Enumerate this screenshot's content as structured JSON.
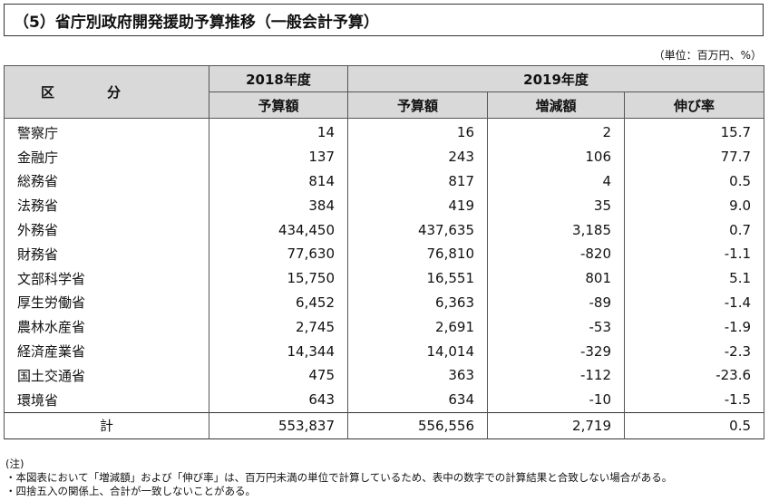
{
  "title": "（5）省庁別政府開発援助予算推移（一般会計予算）",
  "unit": "（単位：百万円、%）",
  "header": {
    "category_a": "区",
    "category_b": "分",
    "year_2018": "2018年度",
    "year_2019": "2019年度",
    "col_budget_2018": "予算額",
    "col_budget_2019": "予算額",
    "col_change": "増減額",
    "col_growth": "伸び率"
  },
  "rows": [
    {
      "name": "警察庁",
      "b2018": "14",
      "b2019": "16",
      "change": "2",
      "growth": "15.7"
    },
    {
      "name": "金融庁",
      "b2018": "137",
      "b2019": "243",
      "change": "106",
      "growth": "77.7"
    },
    {
      "name": "総務省",
      "b2018": "814",
      "b2019": "817",
      "change": "4",
      "growth": "0.5"
    },
    {
      "name": "法務省",
      "b2018": "384",
      "b2019": "419",
      "change": "35",
      "growth": "9.0"
    },
    {
      "name": "外務省",
      "b2018": "434,450",
      "b2019": "437,635",
      "change": "3,185",
      "growth": "0.7"
    },
    {
      "name": "財務省",
      "b2018": "77,630",
      "b2019": "76,810",
      "change": "-820",
      "growth": "-1.1"
    },
    {
      "name": "文部科学省",
      "b2018": "15,750",
      "b2019": "16,551",
      "change": "801",
      "growth": "5.1"
    },
    {
      "name": "厚生労働省",
      "b2018": "6,452",
      "b2019": "6,363",
      "change": "-89",
      "growth": "-1.4"
    },
    {
      "name": "農林水産省",
      "b2018": "2,745",
      "b2019": "2,691",
      "change": "-53",
      "growth": "-1.9"
    },
    {
      "name": "経済産業省",
      "b2018": "14,344",
      "b2019": "14,014",
      "change": "-329",
      "growth": "-2.3"
    },
    {
      "name": "国土交通省",
      "b2018": "475",
      "b2019": "363",
      "change": "-112",
      "growth": "-23.6"
    },
    {
      "name": "環境省",
      "b2018": "643",
      "b2019": "634",
      "change": "-10",
      "growth": "-1.5"
    }
  ],
  "total": {
    "name": "計",
    "b2018": "553,837",
    "b2019": "556,556",
    "change": "2,719",
    "growth": "0.5"
  },
  "notes": {
    "head": "(注)",
    "line1": "・本図表において「増減額」および「伸び率」は、百万円未満の単位で計算しているため、表中の数字での計算結果と合致しない場合がある。",
    "line2": "・四捨五入の関係上、合計が一致しないことがある。"
  }
}
